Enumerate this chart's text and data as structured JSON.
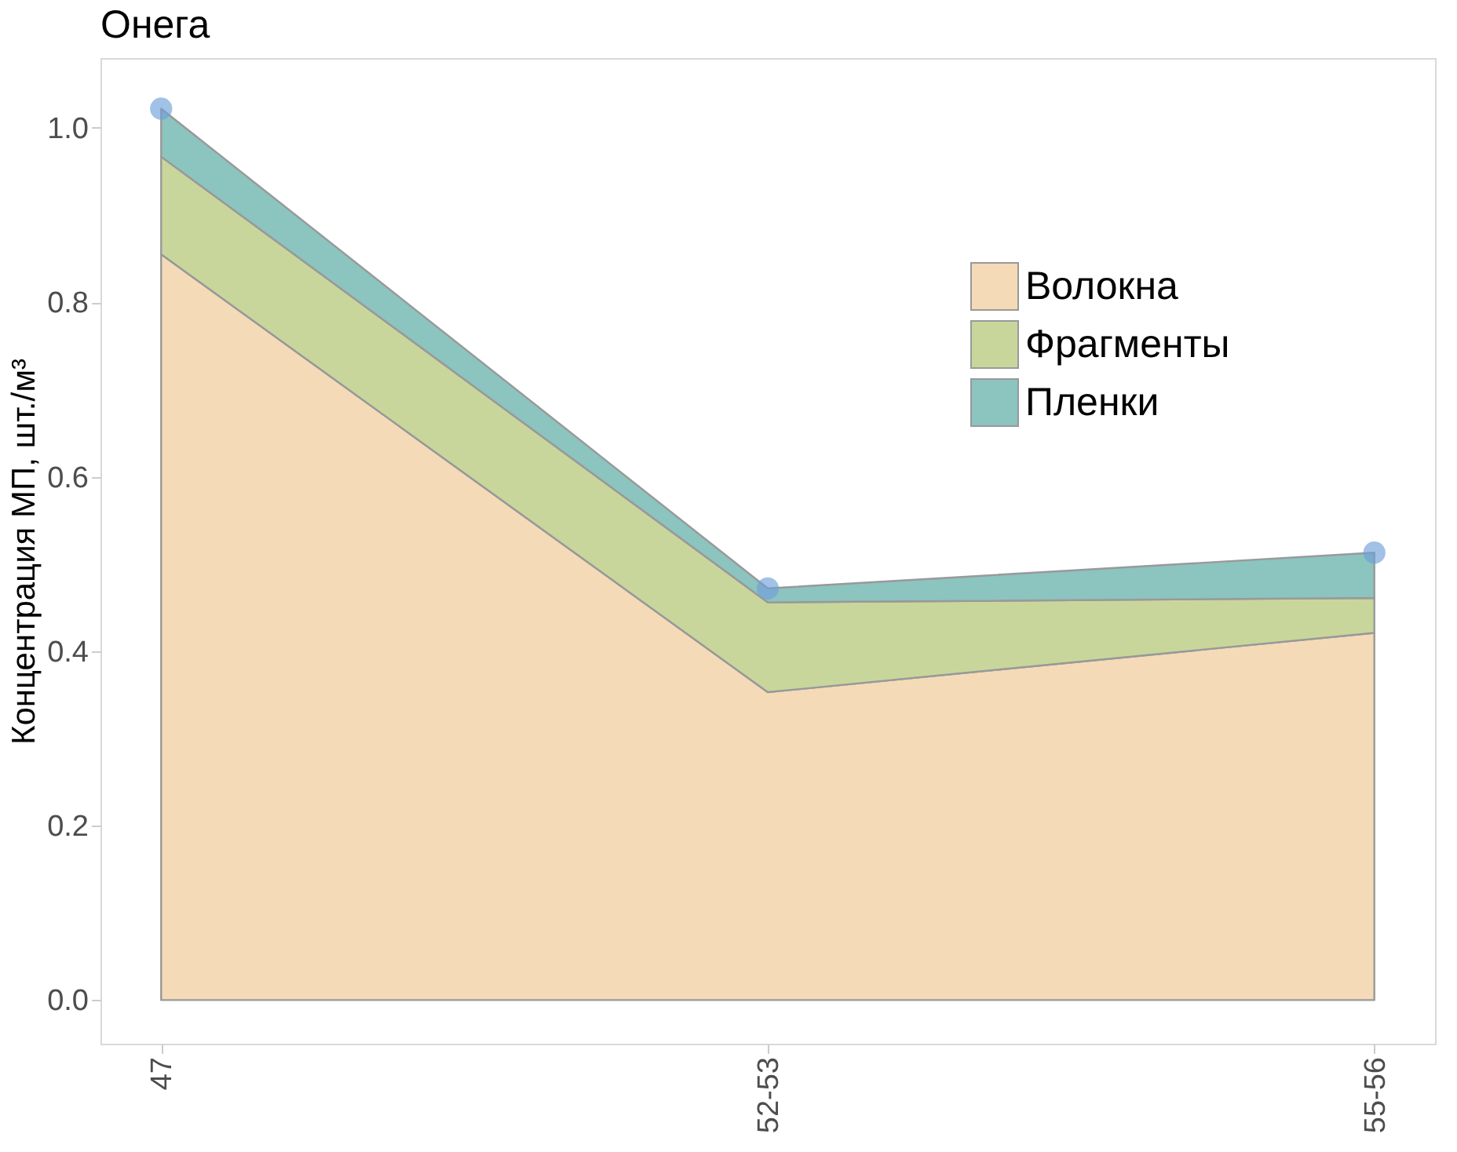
{
  "chart_data": {
    "type": "area",
    "title": "Онега",
    "ylabel": "Концентрация МП, шт./м³",
    "categories": [
      "47",
      "52-53",
      "55-56"
    ],
    "stacked": true,
    "grid": false,
    "legend": "top right",
    "ylim": [
      -0.05,
      1.08
    ],
    "yticks": [
      {
        "value": 0,
        "label": "0.0"
      },
      0.2,
      0.4,
      0.6,
      0.8,
      {
        "value": 1,
        "label": "1.0"
      }
    ],
    "series": [
      {
        "name": "Волокна",
        "color": "#f4dab7",
        "values": [
          0.855,
          0.353,
          0.421
        ]
      },
      {
        "name": "Фрагменты",
        "color": "#c9d69b",
        "values": [
          0.112,
          0.103,
          0.04
        ]
      },
      {
        "name": "Пленки",
        "color": "#8cc4bf",
        "values": [
          0.055,
          0.016,
          0.052
        ]
      },
      {
        "type": "scatter",
        "marker": "circle",
        "color": "#6fa0d8",
        "values": [
          1.022,
          0.472,
          0.513
        ]
      }
    ]
  }
}
